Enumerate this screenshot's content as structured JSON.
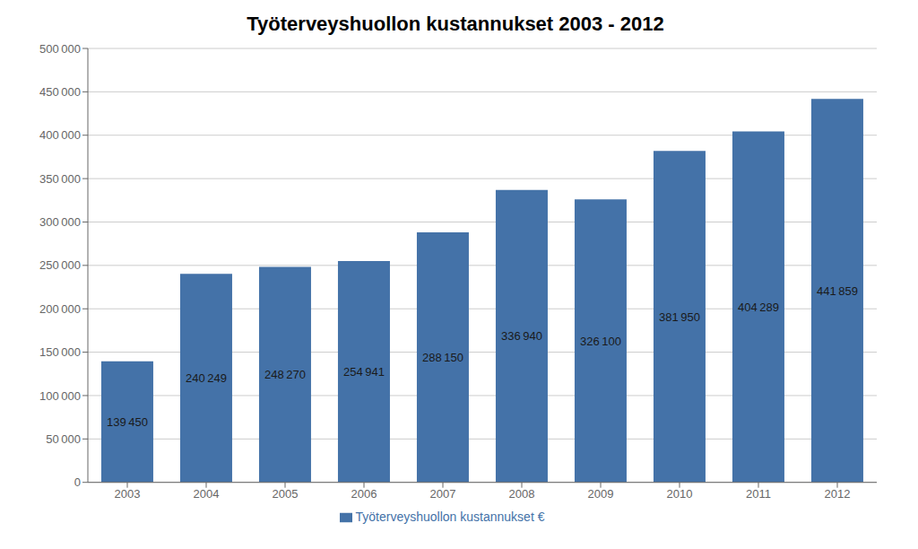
{
  "chart_data": {
    "type": "bar",
    "title": "Työterveyshuollon kustannukset 2003 - 2012",
    "categories": [
      "2003",
      "2004",
      "2005",
      "2006",
      "2007",
      "2008",
      "2009",
      "2010",
      "2011",
      "2012"
    ],
    "series": [
      {
        "name": "Työterveyshuollon kustannukset €",
        "color": "#4472a8",
        "values": [
          139450,
          240249,
          248270,
          254941,
          288150,
          336940,
          326100,
          381950,
          404289,
          441859
        ],
        "value_labels": [
          "139 450",
          "240 249",
          "248 270",
          "254 941",
          "288 150",
          "336 940",
          "326 100",
          "381 950",
          "404 289",
          "441 859"
        ]
      }
    ],
    "ylim": [
      0,
      500000
    ],
    "yticks": [
      0,
      {
        "value": 50000,
        "label": "50 000"
      },
      {
        "value": 100000,
        "label": "100 000"
      },
      {
        "value": 150000,
        "label": "150 000"
      },
      {
        "value": 200000,
        "label": "200 000"
      },
      {
        "value": 250000,
        "label": "250 000"
      },
      {
        "value": 300000,
        "label": "300 000"
      },
      {
        "value": 350000,
        "label": "350 000"
      },
      {
        "value": 400000,
        "label": "400 000"
      },
      {
        "value": 450000,
        "label": "450 000"
      },
      {
        "value": 500000,
        "label": "500 000"
      }
    ],
    "grid": true,
    "legend": "bottom",
    "data_labels": true
  }
}
